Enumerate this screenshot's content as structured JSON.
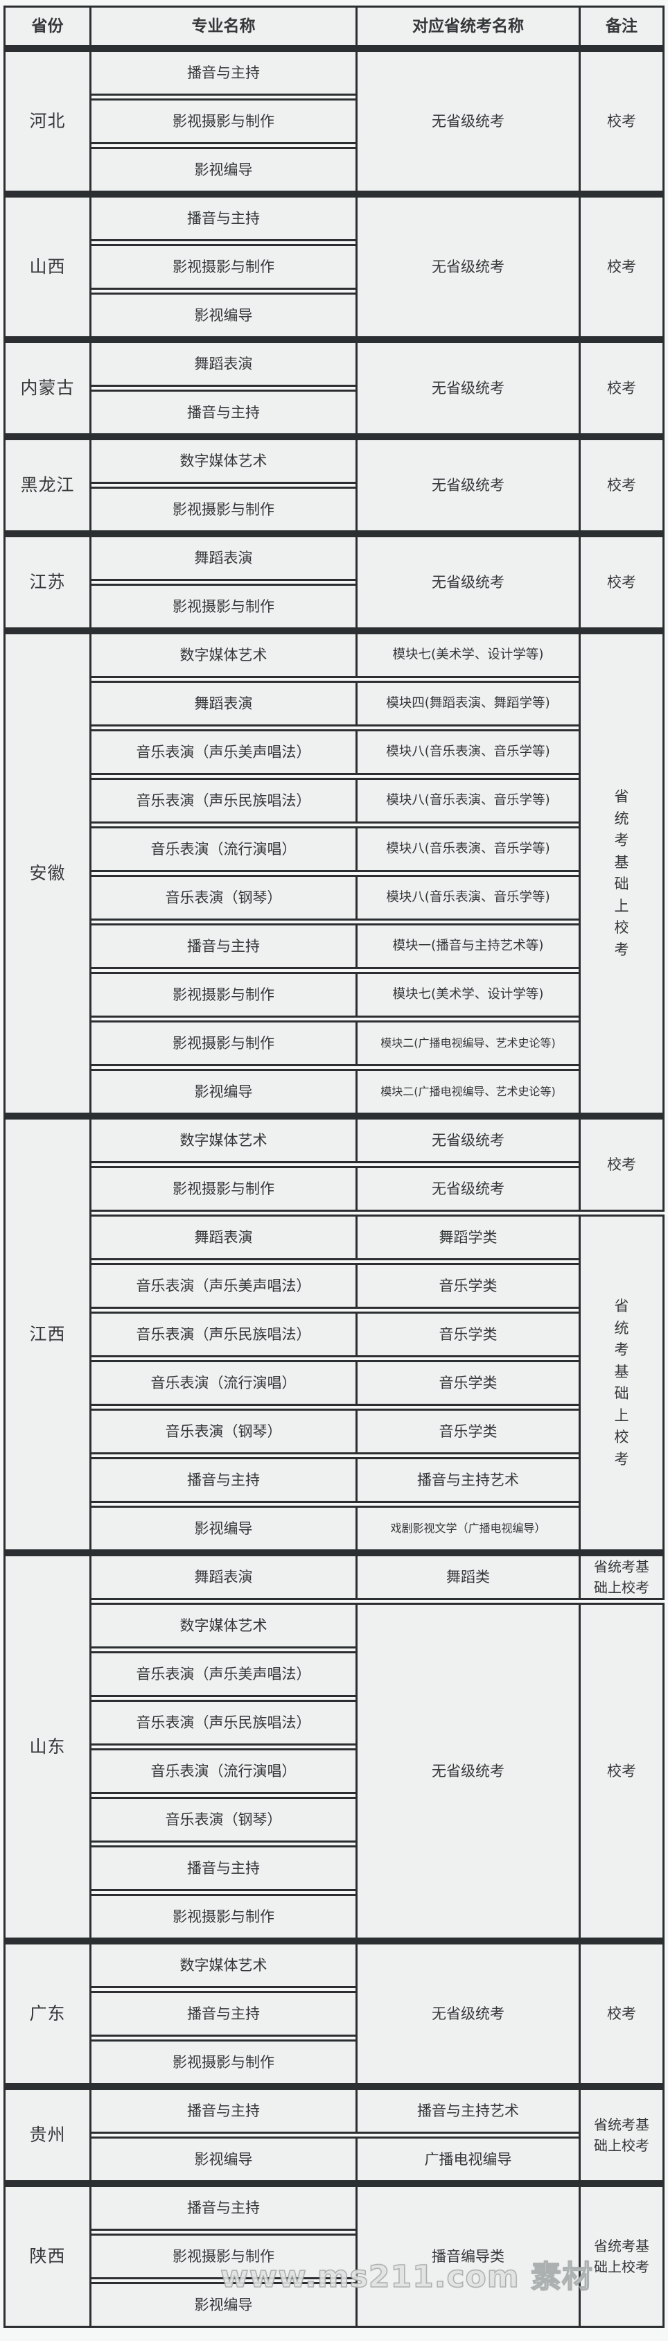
{
  "page": {
    "watermark": "www.ms211.com 素材"
  },
  "table": {
    "headers": [
      "省份",
      "专业名称",
      "对应省统考名称",
      "备注"
    ],
    "sections": [
      {
        "province": "河北",
        "groups": [
          {
            "rows": [
              {
                "major": "播音与主持"
              },
              {
                "major": "影视摄影与制作"
              },
              {
                "major": "影视编导"
              }
            ],
            "exam": "无省级统考",
            "remark": "校考"
          }
        ]
      },
      {
        "province": "山西",
        "groups": [
          {
            "rows": [
              {
                "major": "播音与主持"
              },
              {
                "major": "影视摄影与制作"
              },
              {
                "major": "影视编导"
              }
            ],
            "exam": "无省级统考",
            "remark": "校考"
          }
        ]
      },
      {
        "province": "内蒙古",
        "groups": [
          {
            "rows": [
              {
                "major": "舞蹈表演"
              },
              {
                "major": "播音与主持"
              }
            ],
            "exam": "无省级统考",
            "remark": "校考"
          }
        ]
      },
      {
        "province": "黑龙江",
        "groups": [
          {
            "rows": [
              {
                "major": "数字媒体艺术"
              },
              {
                "major": "影视摄影与制作"
              }
            ],
            "exam": "无省级统考",
            "remark": "校考"
          }
        ]
      },
      {
        "province": "江苏",
        "groups": [
          {
            "rows": [
              {
                "major": "舞蹈表演"
              },
              {
                "major": "影视摄影与制作"
              }
            ],
            "exam": "无省级统考",
            "remark": "校考"
          }
        ]
      },
      {
        "province": "安徽",
        "groups": [
          {
            "rows": [
              {
                "major": "数字媒体艺术",
                "exam": "模块七(美术学、设计学等)"
              },
              {
                "major": "舞蹈表演",
                "exam": "模块四(舞蹈表演、舞蹈学等)"
              },
              {
                "major": "音乐表演（声乐美声唱法）",
                "exam": "模块八(音乐表演、音乐学等)"
              },
              {
                "major": "音乐表演（声乐民族唱法）",
                "exam": "模块八(音乐表演、音乐学等)"
              },
              {
                "major": "音乐表演（流行演唱）",
                "exam": "模块八(音乐表演、音乐学等)"
              },
              {
                "major": "音乐表演（钢琴）",
                "exam": "模块八(音乐表演、音乐学等)"
              },
              {
                "major": "播音与主持",
                "exam": "模块一(播音与主持艺术等)"
              },
              {
                "major": "影视摄影与制作",
                "exam": "模块七(美术学、设计学等)"
              },
              {
                "major": "影视摄影与制作",
                "exam": "模块二(广播电视编导、艺术史论等)"
              },
              {
                "major": "影视编导",
                "exam": "模块二(广播电视编导、艺术史论等)"
              }
            ],
            "remark": "省统考基础上校考"
          }
        ]
      },
      {
        "province": "江西",
        "groups": [
          {
            "rows": [
              {
                "major": "数字媒体艺术",
                "exam": "无省级统考"
              },
              {
                "major": "影视摄影与制作",
                "exam": "无省级统考"
              }
            ],
            "remark": "校考"
          },
          {
            "rows": [
              {
                "major": "舞蹈表演",
                "exam": "舞蹈学类"
              },
              {
                "major": "音乐表演（声乐美声唱法）",
                "exam": "音乐学类"
              },
              {
                "major": "音乐表演（声乐民族唱法）",
                "exam": "音乐学类"
              },
              {
                "major": "音乐表演（流行演唱）",
                "exam": "音乐学类"
              },
              {
                "major": "音乐表演（钢琴）",
                "exam": "音乐学类"
              },
              {
                "major": "播音与主持",
                "exam": "播音与主持艺术"
              },
              {
                "major": "影视编导",
                "exam": "戏剧影视文学（广播电视编导）"
              }
            ],
            "remark": "省统考基础上校考"
          }
        ]
      },
      {
        "province": "山东",
        "groups": [
          {
            "rows": [
              {
                "major": "舞蹈表演",
                "exam": "舞蹈类"
              }
            ],
            "remark": "省统考基础上校考"
          },
          {
            "rows": [
              {
                "major": "数字媒体艺术"
              },
              {
                "major": "音乐表演（声乐美声唱法）"
              },
              {
                "major": "音乐表演（声乐民族唱法）"
              },
              {
                "major": "音乐表演（流行演唱）"
              },
              {
                "major": "音乐表演（钢琴）"
              },
              {
                "major": "播音与主持"
              },
              {
                "major": "影视摄影与制作"
              }
            ],
            "exam": "无省级统考",
            "remark": "校考"
          }
        ]
      },
      {
        "province": "广东",
        "groups": [
          {
            "rows": [
              {
                "major": "数字媒体艺术"
              },
              {
                "major": "播音与主持"
              },
              {
                "major": "影视摄影与制作"
              }
            ],
            "exam": "无省级统考",
            "remark": "校考"
          }
        ]
      },
      {
        "province": "贵州",
        "groups": [
          {
            "rows": [
              {
                "major": "播音与主持",
                "exam": "播音与主持艺术"
              },
              {
                "major": "影视编导",
                "exam": "广播电视编导"
              }
            ],
            "remark": "省统考基础上校考"
          }
        ]
      },
      {
        "province": "陕西",
        "groups": [
          {
            "rows": [
              {
                "major": "播音与主持"
              },
              {
                "major": "影视摄影与制作"
              },
              {
                "major": "影视编导"
              }
            ],
            "exam": "播音编导类",
            "remark": "省统考基础上校考"
          }
        ]
      }
    ]
  }
}
